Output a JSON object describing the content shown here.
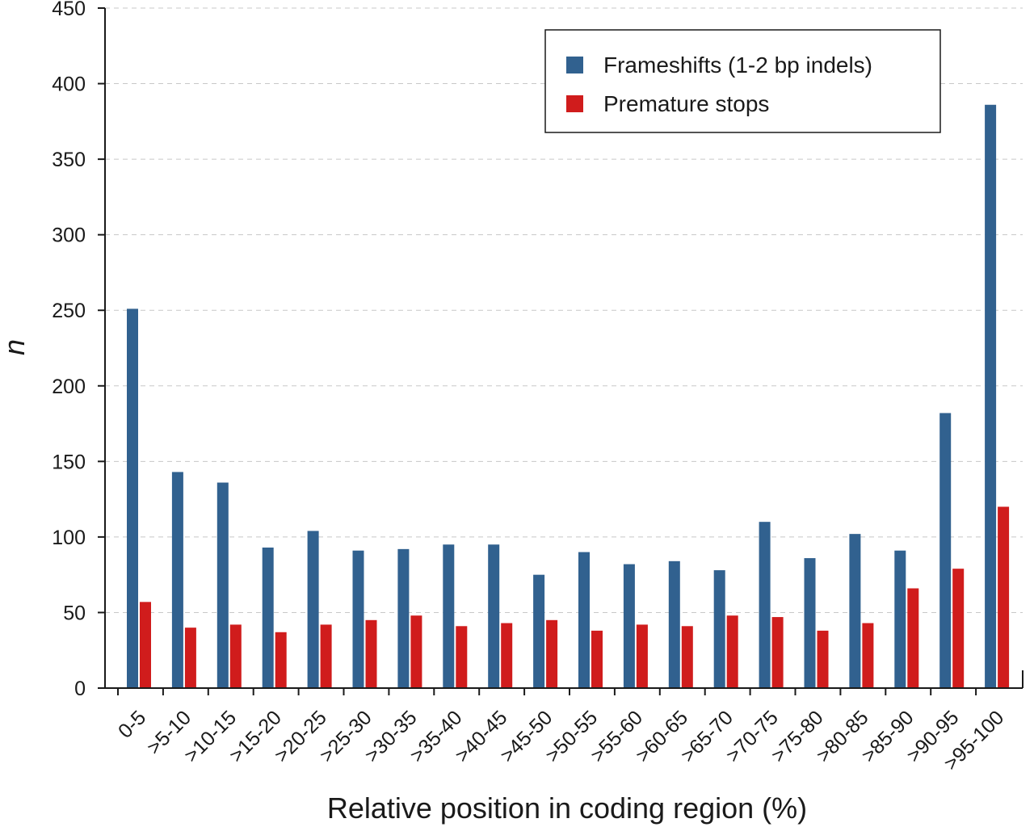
{
  "chart_data": {
    "type": "bar",
    "xlabel": "Relative position in coding region (%)",
    "ylabel": "n",
    "ylim": [
      0,
      450
    ],
    "yticks": [
      0,
      50,
      100,
      150,
      200,
      250,
      300,
      350,
      400,
      450
    ],
    "grid": "horizontal dashed",
    "legend_position": "top-right",
    "categories": [
      "0-5",
      ">5-10",
      ">10-15",
      ">15-20",
      ">20-25",
      ">25-30",
      ">30-35",
      ">35-40",
      ">40-45",
      ">45-50",
      ">50-55",
      ">55-60",
      ">60-65",
      ">65-70",
      ">70-75",
      ">75-80",
      ">80-85",
      ">85-90",
      ">90-95",
      ">95-100"
    ],
    "series": [
      {
        "name": "Frameshifts (1-2 bp indels)",
        "color": "#31618f",
        "values": [
          251,
          143,
          136,
          93,
          104,
          91,
          92,
          95,
          95,
          75,
          90,
          82,
          84,
          78,
          110,
          86,
          102,
          91,
          182,
          386
        ]
      },
      {
        "name": "Premature stops",
        "color": "#d01c1c",
        "values": [
          57,
          40,
          42,
          37,
          42,
          45,
          48,
          41,
          43,
          45,
          38,
          42,
          41,
          48,
          47,
          38,
          43,
          66,
          79,
          120
        ]
      }
    ]
  }
}
